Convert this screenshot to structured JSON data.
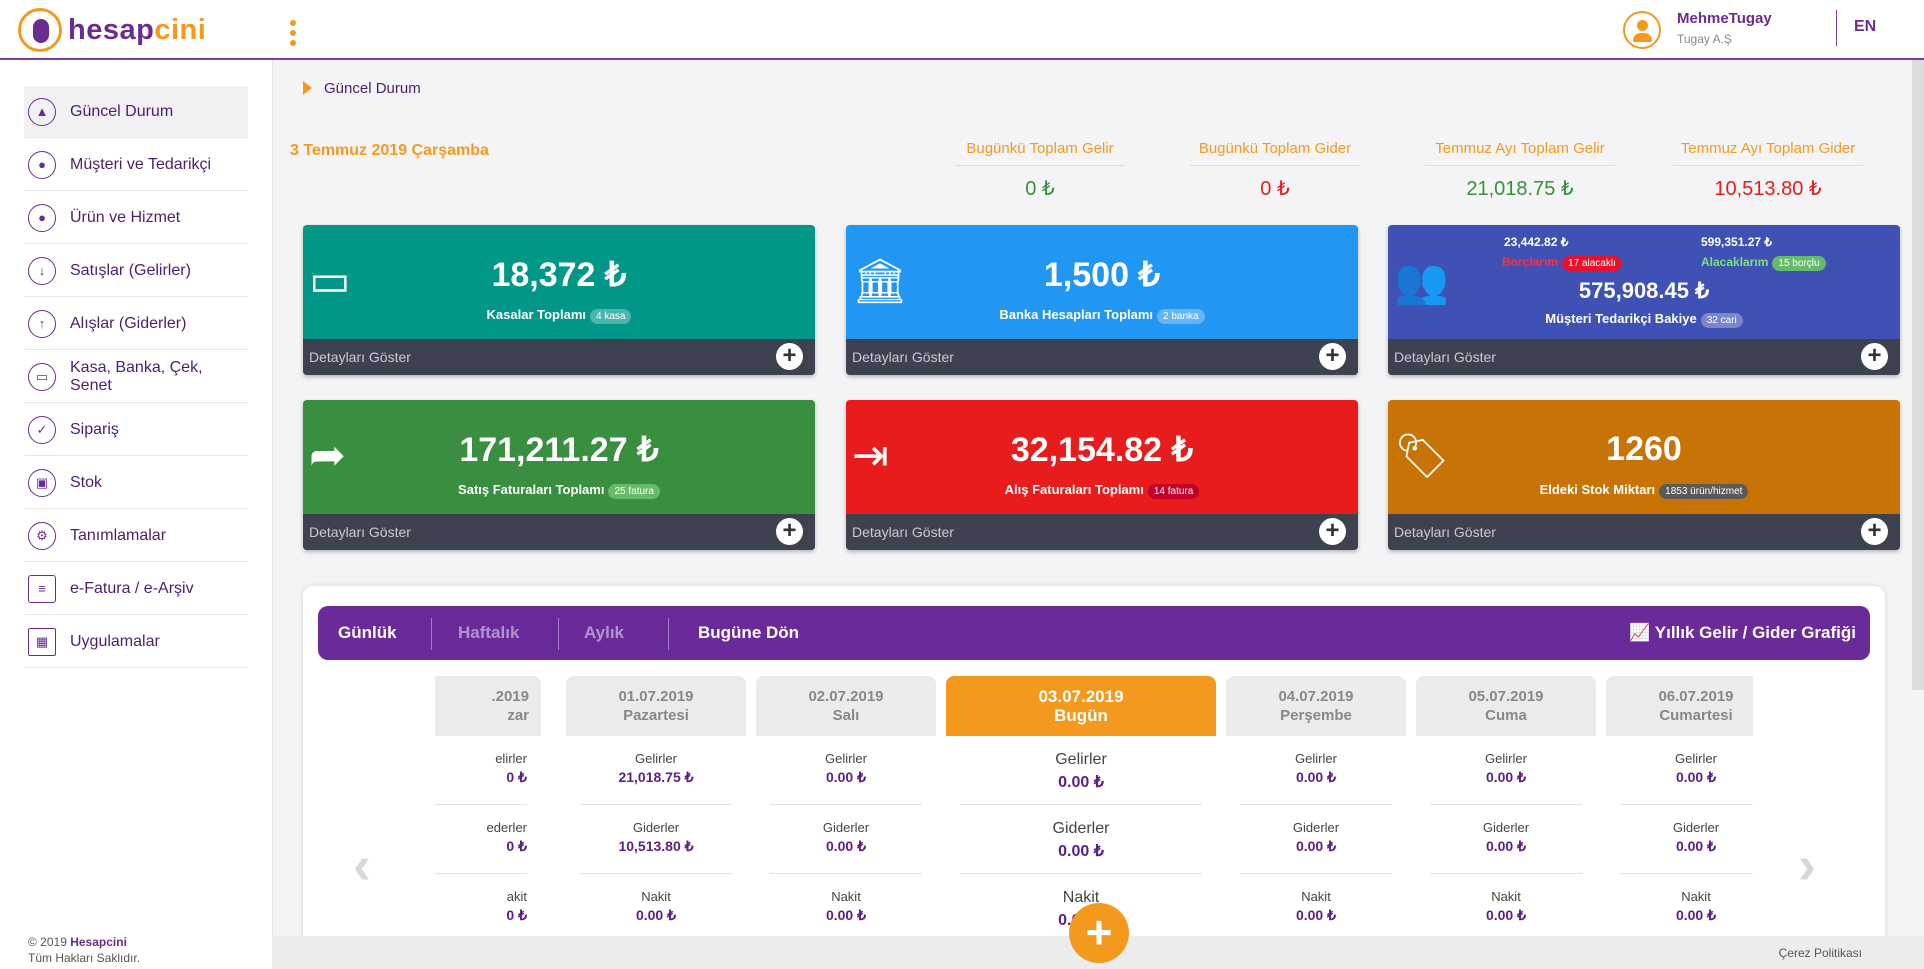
{
  "header": {
    "logo_part1": "hesap",
    "logo_part2": "cini",
    "user_name": "MehmeTugay",
    "user_company": "Tugay A.Ş",
    "language": "EN"
  },
  "sidebar": {
    "items": [
      {
        "label": "Güncel Durum",
        "icon": "chart-icon"
      },
      {
        "label": "Müşteri ve Tedarikçi",
        "icon": "user-icon"
      },
      {
        "label": "Ürün ve Hizmet",
        "icon": "product-icon"
      },
      {
        "label": "Satışlar (Gelirler)",
        "icon": "download-icon"
      },
      {
        "label": "Alışlar (Giderler)",
        "icon": "upload-icon"
      },
      {
        "label": "Kasa, Banka, Çek, Senet",
        "icon": "cash-icon"
      },
      {
        "label": "Sipariş",
        "icon": "check-icon"
      },
      {
        "label": "Stok",
        "icon": "box-icon"
      },
      {
        "label": "Tanımlamalar",
        "icon": "gear-icon"
      },
      {
        "label": "e-Fatura / e-Arşiv",
        "icon": "invoice-icon"
      },
      {
        "label": "Uygulamalar",
        "icon": "grid-icon"
      }
    ],
    "copyright_year": "© 2019",
    "copyright_brand": "Hesapcini",
    "copyright_rights": "Tüm Hakları Saklıdır."
  },
  "breadcrumb": "Güncel Durum",
  "date": "3 Temmuz 2019 Çarşamba",
  "summary": [
    {
      "label": "Bugünkü Toplam Gelir",
      "value": "0 ₺"
    },
    {
      "label": "Bugünkü Toplam Gider",
      "value": "0 ₺"
    },
    {
      "label": "Temmuz Ayı Toplam Gelir",
      "value": "21,018.75 ₺"
    },
    {
      "label": "Temmuz Ayı Toplam Gider",
      "value": "10,513.80 ₺"
    }
  ],
  "cards": {
    "kasa": {
      "amount": "18,372 ₺",
      "label": "Kasalar Toplamı",
      "badge": "4 kasa"
    },
    "banka": {
      "amount": "1,500 ₺",
      "label": "Banka Hesapları Toplamı",
      "badge": "2 banka"
    },
    "cari": {
      "amount": "575,908.45 ₺",
      "label": "Müşteri Tedarikçi Bakiye",
      "badge": "32 cari",
      "debt_amount": "23,442.82 ₺",
      "debt_label": "Borçlarım",
      "debt_badge": "17 alacaklı",
      "credit_amount": "599,351.27 ₺",
      "credit_label": "Alacaklarım",
      "credit_badge": "15 borçlu"
    },
    "satis": {
      "amount": "171,211.27 ₺",
      "label": "Satış Faturaları Toplamı",
      "badge": "25 fatura"
    },
    "alis": {
      "amount": "32,154.82 ₺",
      "label": "Alış Faturaları Toplamı",
      "badge": "14 fatura"
    },
    "stok": {
      "amount": "1260",
      "label": "Eldeki Stok Miktarı",
      "badge": "1853 ürün/hizmet"
    },
    "footer_label": "Detayları Göster"
  },
  "calendar": {
    "tabs": [
      "Günlük",
      "Haftalık",
      "Aylık",
      "Bugüne Dön"
    ],
    "yearly_chart_label": "Yıllık Gelir / Gider Grafiği",
    "row_labels": [
      "Gelirler",
      "Giderler",
      "Nakit"
    ],
    "days": [
      {
        "date": ".2019",
        "name": "zar",
        "values": [
          "0 ₺",
          "0 ₺",
          "0 ₺"
        ],
        "row_labels": [
          "elirler",
          "ederler",
          "akit"
        ]
      },
      {
        "date": "01.07.2019",
        "name": "Pazartesi",
        "values": [
          "21,018.75 ₺",
          "10,513.80 ₺",
          "0.00 ₺"
        ]
      },
      {
        "date": "02.07.2019",
        "name": "Salı",
        "values": [
          "0.00 ₺",
          "0.00 ₺",
          "0.00 ₺"
        ]
      },
      {
        "date": "03.07.2019",
        "name": "Bugün",
        "values": [
          "0.00 ₺",
          "0.00 ₺",
          "0.00 ₺"
        ]
      },
      {
        "date": "04.07.2019",
        "name": "Perşembe",
        "values": [
          "0.00 ₺",
          "0.00 ₺",
          "0.00 ₺"
        ]
      },
      {
        "date": "05.07.2019",
        "name": "Cuma",
        "values": [
          "0.00 ₺",
          "0.00 ₺",
          "0.00 ₺"
        ]
      },
      {
        "date": "06.07.2019",
        "name": "Cumartesi",
        "values": [
          "0.00 ₺",
          "0.00 ₺",
          "0.00 ₺"
        ]
      }
    ]
  },
  "footer": {
    "cookie_policy": "Çerez Politikası"
  },
  "colors": {
    "brand_purple": "#6b2c91",
    "brand_orange": "#f39a1e"
  }
}
